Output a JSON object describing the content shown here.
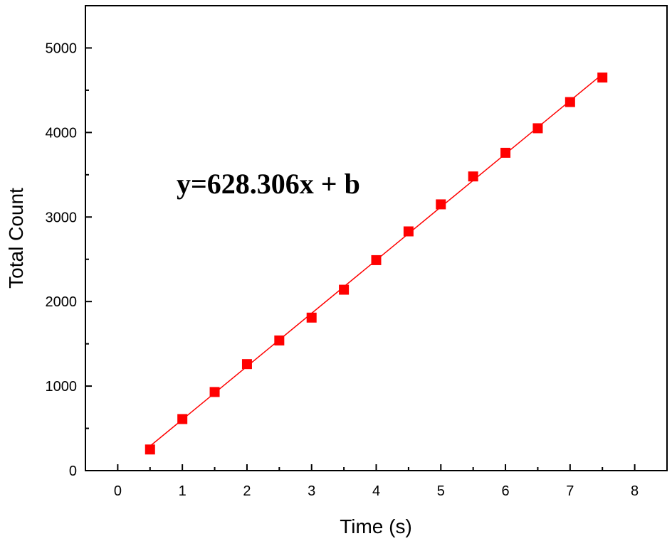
{
  "chart_data": {
    "type": "scatter",
    "xlabel": "Time (s)",
    "ylabel": "Total Count",
    "xlim": [
      -0.5,
      8.5
    ],
    "ylim": [
      0,
      5500
    ],
    "x_ticks": [
      0,
      1,
      2,
      3,
      4,
      5,
      6,
      7,
      8
    ],
    "y_ticks": [
      0,
      1000,
      2000,
      3000,
      4000,
      5000
    ],
    "annotation": "y=628.306x + b",
    "grid": false,
    "series": [
      {
        "color": "#ff0000",
        "marker": "square",
        "x": [
          0.5,
          1.0,
          1.5,
          2.0,
          2.5,
          3.0,
          3.5,
          4.0,
          4.5,
          5.0,
          5.5,
          6.0,
          6.5,
          7.0,
          7.5
        ],
        "y": [
          250,
          610,
          930,
          1260,
          1540,
          1810,
          2140,
          2490,
          2830,
          3150,
          3480,
          3760,
          4050,
          4360,
          4650
        ]
      }
    ],
    "fit_line": {
      "color": "#ff0000",
      "slope": 628.306,
      "x_range": [
        0.5,
        7.5
      ],
      "y_range": [
        290,
        4690
      ]
    }
  }
}
